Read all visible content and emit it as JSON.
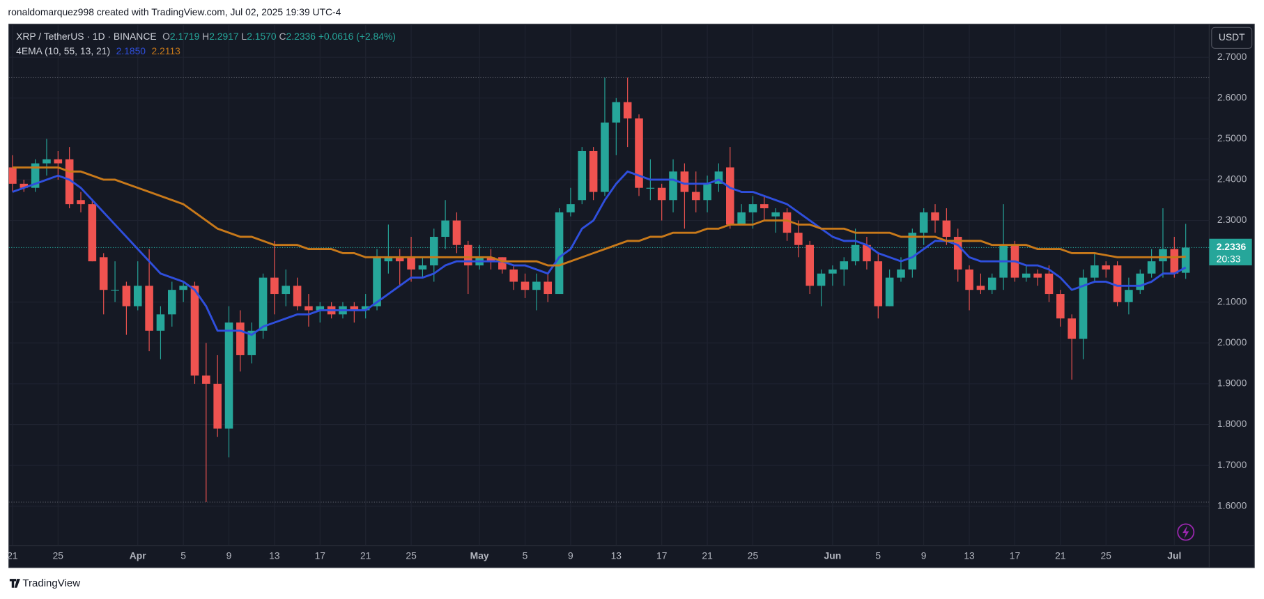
{
  "chart_data": {
    "type": "candlestick",
    "attribution": "ronaldomarquez998 created with TradingView.com, Jul 02, 2025 19:39 UTC-4",
    "title": "XRP / TetherUS · 1D · BINANCE",
    "ohlc_legend": [
      {
        "label": "O",
        "value": "2.1719"
      },
      {
        "label": "H",
        "value": "2.2917"
      },
      {
        "label": "L",
        "value": "2.1570"
      },
      {
        "label": "C",
        "value": "2.2336"
      }
    ],
    "change_label": "+0.0616 (+2.84%)",
    "indicator": "4EMA (10, 55, 13, 21)",
    "currency": "USDT",
    "last_price_label": "2.2336",
    "countdown": "20:33",
    "brand": "TradingView",
    "up_color": "#26a69a",
    "down_color": "#ef5350",
    "grid": true,
    "x": [
      "03-21",
      "03-22",
      "03-23",
      "03-24",
      "03-25",
      "03-26",
      "03-27",
      "03-28",
      "03-29",
      "03-30",
      "03-31",
      "04-01",
      "04-02",
      "04-03",
      "04-04",
      "04-05",
      "04-06",
      "04-07",
      "04-08",
      "04-09",
      "04-10",
      "04-11",
      "04-12",
      "04-13",
      "04-14",
      "04-15",
      "04-16",
      "04-17",
      "04-18",
      "04-19",
      "04-20",
      "04-21",
      "04-22",
      "04-23",
      "04-24",
      "04-25",
      "04-26",
      "04-27",
      "04-28",
      "04-29",
      "04-30",
      "05-01",
      "05-02",
      "05-03",
      "05-04",
      "05-05",
      "05-06",
      "05-07",
      "05-08",
      "05-09",
      "05-10",
      "05-11",
      "05-12",
      "05-13",
      "05-14",
      "05-15",
      "05-16",
      "05-17",
      "05-18",
      "05-19",
      "05-20",
      "05-21",
      "05-22",
      "05-23",
      "05-24",
      "05-25",
      "05-26",
      "05-27",
      "05-28",
      "05-29",
      "05-30",
      "05-31",
      "06-01",
      "06-02",
      "06-03",
      "06-04",
      "06-05",
      "06-06",
      "06-07",
      "06-08",
      "06-09",
      "06-10",
      "06-11",
      "06-12",
      "06-13",
      "06-14",
      "06-15",
      "06-16",
      "06-17",
      "06-18",
      "06-19",
      "06-20",
      "06-21",
      "06-22",
      "06-23",
      "06-24",
      "06-25",
      "06-26",
      "06-27",
      "06-28",
      "06-29",
      "06-30",
      "07-01",
      "07-02"
    ],
    "open": [
      2.43,
      2.39,
      2.38,
      2.44,
      2.45,
      2.45,
      2.35,
      2.34,
      2.21,
      2.13,
      2.14,
      2.09,
      2.14,
      2.03,
      2.07,
      2.13,
      2.14,
      1.92,
      1.9,
      1.79,
      2.05,
      1.97,
      2.03,
      2.16,
      2.12,
      2.14,
      2.09,
      2.08,
      2.09,
      2.07,
      2.09,
      2.08,
      2.09,
      2.2,
      2.21,
      2.21,
      2.18,
      2.19,
      2.26,
      2.3,
      2.24,
      2.19,
      2.21,
      2.21,
      2.18,
      2.15,
      2.13,
      2.15,
      2.12,
      2.32,
      2.35,
      2.47,
      2.37,
      2.54,
      2.59,
      2.55,
      2.38,
      2.38,
      2.35,
      2.42,
      2.37,
      2.35,
      2.39,
      2.43,
      2.29,
      2.32,
      2.34,
      2.31,
      2.32,
      2.27,
      2.24,
      2.14,
      2.17,
      2.18,
      2.2,
      2.24,
      2.2,
      2.09,
      2.16,
      2.18,
      2.27,
      2.32,
      2.3,
      2.26,
      2.18,
      2.14,
      2.13,
      2.16,
      2.24,
      2.16,
      2.17,
      2.17,
      2.12,
      2.06,
      2.01,
      2.16,
      2.19,
      2.19,
      2.1,
      2.13,
      2.17,
      2.2,
      2.23,
      2.1719
    ],
    "high": [
      2.46,
      2.4,
      2.45,
      2.5,
      2.47,
      2.48,
      2.37,
      2.35,
      2.22,
      2.2,
      2.15,
      2.2,
      2.23,
      2.09,
      2.15,
      2.15,
      2.15,
      2.0,
      1.97,
      2.09,
      2.08,
      2.05,
      2.17,
      2.25,
      2.18,
      2.16,
      2.12,
      2.1,
      2.1,
      2.1,
      2.1,
      2.12,
      2.23,
      2.29,
      2.23,
      2.26,
      2.21,
      2.28,
      2.35,
      2.32,
      2.25,
      2.24,
      2.23,
      2.21,
      2.19,
      2.17,
      2.17,
      2.17,
      2.33,
      2.38,
      2.48,
      2.48,
      2.65,
      2.6,
      2.65,
      2.56,
      2.45,
      2.39,
      2.45,
      2.44,
      2.42,
      2.41,
      2.44,
      2.48,
      2.34,
      2.36,
      2.36,
      2.33,
      2.33,
      2.3,
      2.25,
      2.18,
      2.19,
      2.21,
      2.28,
      2.26,
      2.22,
      2.18,
      2.21,
      2.28,
      2.33,
      2.34,
      2.33,
      2.28,
      2.19,
      2.17,
      2.17,
      2.34,
      2.25,
      2.19,
      2.18,
      2.19,
      2.13,
      2.07,
      2.18,
      2.22,
      2.2,
      2.2,
      2.16,
      2.18,
      2.23,
      2.33,
      2.26,
      2.2917
    ],
    "low": [
      2.37,
      2.37,
      2.37,
      2.41,
      2.4,
      2.33,
      2.32,
      2.2,
      2.07,
      2.1,
      2.02,
      2.08,
      1.98,
      1.96,
      2.04,
      2.1,
      1.9,
      1.61,
      1.77,
      1.72,
      1.93,
      1.95,
      2.01,
      2.07,
      2.09,
      2.08,
      2.04,
      2.05,
      2.06,
      2.06,
      2.05,
      2.06,
      2.08,
      2.17,
      2.14,
      2.15,
      2.16,
      2.15,
      2.23,
      2.22,
      2.12,
      2.18,
      2.18,
      2.17,
      2.13,
      2.11,
      2.08,
      2.1,
      2.12,
      2.31,
      2.34,
      2.35,
      2.36,
      2.46,
      2.48,
      2.36,
      2.35,
      2.3,
      2.32,
      2.28,
      2.32,
      2.32,
      2.37,
      2.28,
      2.29,
      2.28,
      2.3,
      2.27,
      2.25,
      2.21,
      2.12,
      2.09,
      2.14,
      2.14,
      2.19,
      2.18,
      2.06,
      2.09,
      2.15,
      2.16,
      2.24,
      2.27,
      2.24,
      2.15,
      2.08,
      2.12,
      2.12,
      2.13,
      2.15,
      2.15,
      2.14,
      2.1,
      2.04,
      1.91,
      1.96,
      2.15,
      2.16,
      2.09,
      2.07,
      2.12,
      2.16,
      2.16,
      2.16,
      2.157
    ],
    "close": [
      2.39,
      2.38,
      2.44,
      2.45,
      2.44,
      2.34,
      2.34,
      2.2,
      2.13,
      2.13,
      2.09,
      2.14,
      2.03,
      2.07,
      2.13,
      2.14,
      1.92,
      1.9,
      1.79,
      2.05,
      1.97,
      2.03,
      2.16,
      2.12,
      2.14,
      2.09,
      2.08,
      2.09,
      2.07,
      2.09,
      2.08,
      2.09,
      2.21,
      2.21,
      2.2,
      2.18,
      2.19,
      2.26,
      2.3,
      2.24,
      2.19,
      2.21,
      2.2,
      2.18,
      2.15,
      2.13,
      2.15,
      2.12,
      2.32,
      2.34,
      2.47,
      2.37,
      2.54,
      2.59,
      2.55,
      2.38,
      2.38,
      2.35,
      2.42,
      2.37,
      2.35,
      2.39,
      2.42,
      2.29,
      2.32,
      2.34,
      2.33,
      2.32,
      2.27,
      2.24,
      2.14,
      2.17,
      2.18,
      2.2,
      2.24,
      2.2,
      2.09,
      2.16,
      2.18,
      2.27,
      2.32,
      2.3,
      2.26,
      2.18,
      2.13,
      2.13,
      2.16,
      2.24,
      2.16,
      2.17,
      2.16,
      2.12,
      2.06,
      2.01,
      2.16,
      2.19,
      2.18,
      2.1,
      2.13,
      2.17,
      2.2,
      2.23,
      2.17,
      2.2336
    ],
    "lines": [
      {
        "color": "#2f4fdd",
        "value_label": "2.1850",
        "values": [
          2.37,
          2.38,
          2.39,
          2.4,
          2.41,
          2.4,
          2.38,
          2.35,
          2.32,
          2.29,
          2.26,
          2.23,
          2.2,
          2.17,
          2.16,
          2.15,
          2.13,
          2.09,
          2.03,
          2.03,
          2.03,
          2.02,
          2.04,
          2.05,
          2.06,
          2.07,
          2.07,
          2.08,
          2.08,
          2.08,
          2.08,
          2.08,
          2.1,
          2.12,
          2.14,
          2.16,
          2.16,
          2.17,
          2.19,
          2.2,
          2.2,
          2.2,
          2.2,
          2.2,
          2.19,
          2.19,
          2.18,
          2.17,
          2.21,
          2.23,
          2.28,
          2.3,
          2.35,
          2.39,
          2.42,
          2.41,
          2.4,
          2.4,
          2.4,
          2.39,
          2.39,
          2.39,
          2.4,
          2.38,
          2.37,
          2.37,
          2.36,
          2.35,
          2.34,
          2.32,
          2.3,
          2.28,
          2.26,
          2.25,
          2.25,
          2.24,
          2.22,
          2.21,
          2.2,
          2.21,
          2.23,
          2.25,
          2.25,
          2.24,
          2.21,
          2.2,
          2.2,
          2.2,
          2.2,
          2.19,
          2.19,
          2.18,
          2.16,
          2.13,
          2.14,
          2.15,
          2.15,
          2.14,
          2.14,
          2.14,
          2.15,
          2.17,
          2.17,
          2.185
        ]
      },
      {
        "color": "#c8791a",
        "value_label": "2.2113",
        "values": [
          2.43,
          2.43,
          2.43,
          2.43,
          2.43,
          2.42,
          2.42,
          2.41,
          2.4,
          2.4,
          2.39,
          2.38,
          2.37,
          2.36,
          2.35,
          2.34,
          2.32,
          2.3,
          2.28,
          2.27,
          2.26,
          2.26,
          2.25,
          2.24,
          2.24,
          2.24,
          2.23,
          2.23,
          2.23,
          2.22,
          2.22,
          2.21,
          2.21,
          2.21,
          2.21,
          2.21,
          2.21,
          2.21,
          2.21,
          2.21,
          2.21,
          2.21,
          2.21,
          2.2,
          2.2,
          2.2,
          2.2,
          2.19,
          2.19,
          2.2,
          2.21,
          2.22,
          2.23,
          2.24,
          2.25,
          2.25,
          2.26,
          2.26,
          2.27,
          2.27,
          2.27,
          2.28,
          2.28,
          2.29,
          2.29,
          2.29,
          2.3,
          2.3,
          2.3,
          2.29,
          2.29,
          2.28,
          2.28,
          2.28,
          2.27,
          2.27,
          2.27,
          2.27,
          2.26,
          2.26,
          2.26,
          2.26,
          2.25,
          2.25,
          2.25,
          2.25,
          2.24,
          2.24,
          2.24,
          2.24,
          2.23,
          2.23,
          2.23,
          2.22,
          2.22,
          2.22,
          2.215,
          2.21,
          2.21,
          2.21,
          2.21,
          2.21,
          2.21,
          2.2113
        ]
      }
    ],
    "ylim": [
      1.503,
      2.779
    ],
    "yticks": [
      {
        "value": 1.6,
        "label": "1.6000"
      },
      {
        "value": 1.7,
        "label": "1.7000"
      },
      {
        "value": 1.8,
        "label": "1.8000"
      },
      {
        "value": 1.9,
        "label": "1.9000"
      },
      {
        "value": 2.0,
        "label": "2.0000"
      },
      {
        "value": 2.1,
        "label": "2.1000"
      },
      {
        "value": 2.3,
        "label": "2.3000"
      },
      {
        "value": 2.4,
        "label": "2.4000"
      },
      {
        "value": 2.5,
        "label": "2.5000"
      },
      {
        "value": 2.6,
        "label": "2.6000"
      },
      {
        "value": 2.7,
        "label": "2.7000"
      }
    ],
    "xticks": [
      {
        "value": "03-21",
        "label": "21"
      },
      {
        "value": "03-25",
        "label": "25"
      },
      {
        "value": "04-01",
        "label": "Apr"
      },
      {
        "value": "04-05",
        "label": "5"
      },
      {
        "value": "04-09",
        "label": "9"
      },
      {
        "value": "04-13",
        "label": "13"
      },
      {
        "value": "04-17",
        "label": "17"
      },
      {
        "value": "04-21",
        "label": "21"
      },
      {
        "value": "04-25",
        "label": "25"
      },
      {
        "value": "05-01",
        "label": "May"
      },
      {
        "value": "05-05",
        "label": "5"
      },
      {
        "value": "05-09",
        "label": "9"
      },
      {
        "value": "05-13",
        "label": "13"
      },
      {
        "value": "05-17",
        "label": "17"
      },
      {
        "value": "05-21",
        "label": "21"
      },
      {
        "value": "05-25",
        "label": "25"
      },
      {
        "value": "06-01",
        "label": "Jun"
      },
      {
        "value": "06-05",
        "label": "5"
      },
      {
        "value": "06-09",
        "label": "9"
      },
      {
        "value": "06-13",
        "label": "13"
      },
      {
        "value": "06-17",
        "label": "17"
      },
      {
        "value": "06-21",
        "label": "21"
      },
      {
        "value": "06-25",
        "label": "25"
      },
      {
        "value": "07-01",
        "label": "Jul"
      }
    ]
  }
}
